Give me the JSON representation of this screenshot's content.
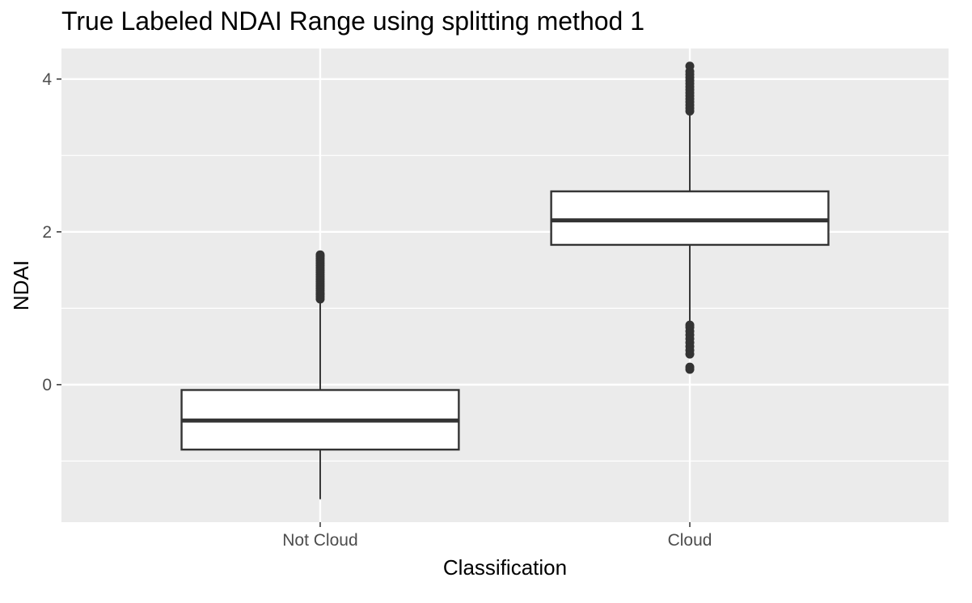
{
  "chart_data": {
    "type": "boxplot",
    "title": "True Labeled NDAI Range using splitting method 1",
    "xlabel": "Classification",
    "ylabel": "NDAI",
    "categories": [
      "Not Cloud",
      "Cloud"
    ],
    "ylim": [
      -1.8,
      4.4
    ],
    "yticks": [
      0,
      2,
      4
    ],
    "y_minor_gridlines": [
      -1,
      1,
      3
    ],
    "grid": true,
    "legend": "none",
    "colors": {
      "panel": "#ebebeb",
      "gridline": "#ffffff",
      "box_fill": "#ffffff",
      "box_stroke": "#333333",
      "tick_text": "#4d4d4d"
    },
    "boxes": [
      {
        "category": "Not Cloud",
        "whisker_low": -1.5,
        "q1": -0.85,
        "median": -0.47,
        "q3": -0.07,
        "whisker_high": 1.1,
        "outliers": [
          1.12,
          1.15,
          1.18,
          1.2,
          1.23,
          1.26,
          1.29,
          1.32,
          1.35,
          1.38,
          1.41,
          1.44,
          1.47,
          1.5,
          1.53,
          1.56,
          1.59,
          1.62,
          1.65,
          1.68,
          1.7
        ]
      },
      {
        "category": "Cloud",
        "whisker_low": 0.8,
        "q1": 1.83,
        "median": 2.15,
        "q3": 2.53,
        "whisker_high": 3.55,
        "outliers_low": [
          0.2,
          0.23,
          0.4,
          0.45,
          0.5,
          0.55,
          0.6,
          0.65,
          0.7,
          0.75,
          0.78
        ],
        "outliers_high": [
          3.58,
          3.62,
          3.66,
          3.7,
          3.74,
          3.78,
          3.82,
          3.86,
          3.9,
          3.94,
          3.98,
          4.02,
          4.06,
          4.1,
          4.17
        ]
      }
    ]
  }
}
